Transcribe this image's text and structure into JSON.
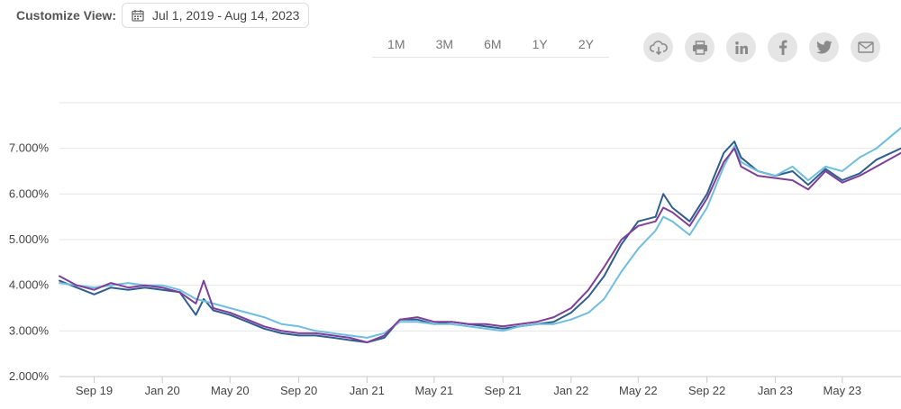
{
  "header": {
    "customize_label": "Customize View:",
    "date_range": "Jul 1, 2019 - Aug 14, 2023"
  },
  "range_buttons": [
    "1M",
    "3M",
    "6M",
    "1Y",
    "2Y"
  ],
  "share_icons": [
    "cloud-download-icon",
    "print-icon",
    "linkedin-icon",
    "facebook-icon",
    "twitter-icon",
    "email-icon"
  ],
  "chart_data": {
    "type": "line",
    "title": "",
    "xlabel": "",
    "ylabel": "",
    "x_range": [
      "2019-07-01",
      "2023-08-14"
    ],
    "y_range": [
      2.0,
      8.0
    ],
    "grid": true,
    "y_ticks": [
      "2.000%",
      "3.000%",
      "4.000%",
      "5.000%",
      "6.000%",
      "7.000%"
    ],
    "x_tick_labels": [
      "Sep 19",
      "Jan 20",
      "May 20",
      "Sep 20",
      "Jan 21",
      "May 21",
      "Sep 21",
      "Jan 22",
      "May 22",
      "Sep 22",
      "Jan 23",
      "May 23"
    ],
    "x_tick_dates": [
      "2019-09-01",
      "2020-01-01",
      "2020-05-01",
      "2020-09-01",
      "2021-01-01",
      "2021-05-01",
      "2021-09-01",
      "2022-01-01",
      "2022-05-01",
      "2022-09-01",
      "2023-01-01",
      "2023-05-01"
    ],
    "series": [
      {
        "color": "#2e5e8e",
        "x": [
          "2019-07-01",
          "2019-08-01",
          "2019-09-01",
          "2019-10-01",
          "2019-11-01",
          "2019-12-01",
          "2020-01-01",
          "2020-02-01",
          "2020-03-01",
          "2020-03-15",
          "2020-04-01",
          "2020-05-01",
          "2020-06-01",
          "2020-07-01",
          "2020-08-01",
          "2020-09-01",
          "2020-10-01",
          "2020-11-01",
          "2020-12-01",
          "2021-01-01",
          "2021-02-01",
          "2021-03-01",
          "2021-04-01",
          "2021-05-01",
          "2021-06-01",
          "2021-07-01",
          "2021-08-01",
          "2021-09-01",
          "2021-10-01",
          "2021-11-01",
          "2021-12-01",
          "2022-01-01",
          "2022-02-01",
          "2022-03-01",
          "2022-04-01",
          "2022-05-01",
          "2022-06-01",
          "2022-06-15",
          "2022-07-01",
          "2022-08-01",
          "2022-09-01",
          "2022-10-01",
          "2022-10-20",
          "2022-11-01",
          "2022-12-01",
          "2023-01-01",
          "2023-02-01",
          "2023-03-01",
          "2023-04-01",
          "2023-05-01",
          "2023-06-01",
          "2023-07-01",
          "2023-08-14"
        ],
        "y": [
          4.1,
          3.95,
          3.8,
          3.95,
          3.9,
          3.95,
          3.9,
          3.85,
          3.35,
          3.7,
          3.45,
          3.35,
          3.2,
          3.05,
          2.95,
          2.9,
          2.9,
          2.85,
          2.8,
          2.75,
          2.85,
          3.25,
          3.25,
          3.15,
          3.2,
          3.15,
          3.1,
          3.05,
          3.1,
          3.15,
          3.2,
          3.4,
          3.75,
          4.2,
          4.9,
          5.4,
          5.5,
          6.0,
          5.7,
          5.4,
          6.0,
          6.9,
          7.15,
          6.8,
          6.5,
          6.4,
          6.5,
          6.2,
          6.55,
          6.3,
          6.45,
          6.75,
          7.0
        ]
      },
      {
        "color": "#6fbedf",
        "x": [
          "2019-07-01",
          "2019-08-01",
          "2019-09-01",
          "2019-10-01",
          "2019-11-01",
          "2019-12-01",
          "2020-01-01",
          "2020-02-01",
          "2020-03-01",
          "2020-04-01",
          "2020-05-01",
          "2020-06-01",
          "2020-07-01",
          "2020-08-01",
          "2020-09-01",
          "2020-10-01",
          "2020-11-01",
          "2020-12-01",
          "2021-01-01",
          "2021-02-01",
          "2021-03-01",
          "2021-04-01",
          "2021-05-01",
          "2021-06-01",
          "2021-07-01",
          "2021-08-01",
          "2021-09-01",
          "2021-10-01",
          "2021-11-01",
          "2021-12-01",
          "2022-01-01",
          "2022-02-01",
          "2022-03-01",
          "2022-04-01",
          "2022-05-01",
          "2022-06-01",
          "2022-06-15",
          "2022-07-01",
          "2022-08-01",
          "2022-09-01",
          "2022-10-01",
          "2022-10-20",
          "2022-11-01",
          "2022-12-01",
          "2023-01-01",
          "2023-02-01",
          "2023-03-01",
          "2023-04-01",
          "2023-05-01",
          "2023-06-01",
          "2023-07-01",
          "2023-08-14"
        ],
        "y": [
          4.05,
          4.0,
          3.95,
          4.0,
          4.05,
          4.0,
          4.0,
          3.9,
          3.7,
          3.6,
          3.5,
          3.4,
          3.3,
          3.15,
          3.1,
          3.0,
          2.95,
          2.9,
          2.85,
          2.95,
          3.2,
          3.2,
          3.15,
          3.15,
          3.1,
          3.05,
          3.0,
          3.1,
          3.15,
          3.15,
          3.25,
          3.4,
          3.7,
          4.3,
          4.8,
          5.2,
          5.5,
          5.4,
          5.1,
          5.7,
          6.6,
          7.05,
          6.7,
          6.5,
          6.4,
          6.6,
          6.3,
          6.6,
          6.5,
          6.8,
          7.0,
          7.45
        ]
      },
      {
        "color": "#7f3f98",
        "x": [
          "2019-07-01",
          "2019-08-01",
          "2019-09-01",
          "2019-10-01",
          "2019-11-01",
          "2019-12-01",
          "2020-01-01",
          "2020-02-01",
          "2020-03-01",
          "2020-03-15",
          "2020-04-01",
          "2020-05-01",
          "2020-06-01",
          "2020-07-01",
          "2020-08-01",
          "2020-09-01",
          "2020-10-01",
          "2020-11-01",
          "2020-12-01",
          "2021-01-01",
          "2021-02-01",
          "2021-03-01",
          "2021-04-01",
          "2021-05-01",
          "2021-06-01",
          "2021-07-01",
          "2021-08-01",
          "2021-09-01",
          "2021-10-01",
          "2021-11-01",
          "2021-12-01",
          "2022-01-01",
          "2022-02-01",
          "2022-03-01",
          "2022-04-01",
          "2022-05-01",
          "2022-06-01",
          "2022-06-15",
          "2022-07-01",
          "2022-08-01",
          "2022-09-01",
          "2022-10-01",
          "2022-10-20",
          "2022-11-01",
          "2022-12-01",
          "2023-01-01",
          "2023-02-01",
          "2023-03-01",
          "2023-04-01",
          "2023-05-01",
          "2023-06-01",
          "2023-07-01",
          "2023-08-14"
        ],
        "y": [
          4.2,
          4.0,
          3.9,
          4.05,
          3.95,
          4.0,
          3.95,
          3.85,
          3.6,
          4.1,
          3.5,
          3.4,
          3.25,
          3.1,
          3.0,
          2.95,
          2.95,
          2.9,
          2.85,
          2.75,
          2.9,
          3.25,
          3.3,
          3.2,
          3.2,
          3.15,
          3.15,
          3.1,
          3.15,
          3.2,
          3.3,
          3.5,
          3.9,
          4.4,
          5.0,
          5.3,
          5.4,
          5.7,
          5.6,
          5.3,
          5.9,
          6.7,
          7.0,
          6.6,
          6.4,
          6.35,
          6.3,
          6.1,
          6.5,
          6.25,
          6.4,
          6.6,
          6.9
        ]
      }
    ]
  }
}
